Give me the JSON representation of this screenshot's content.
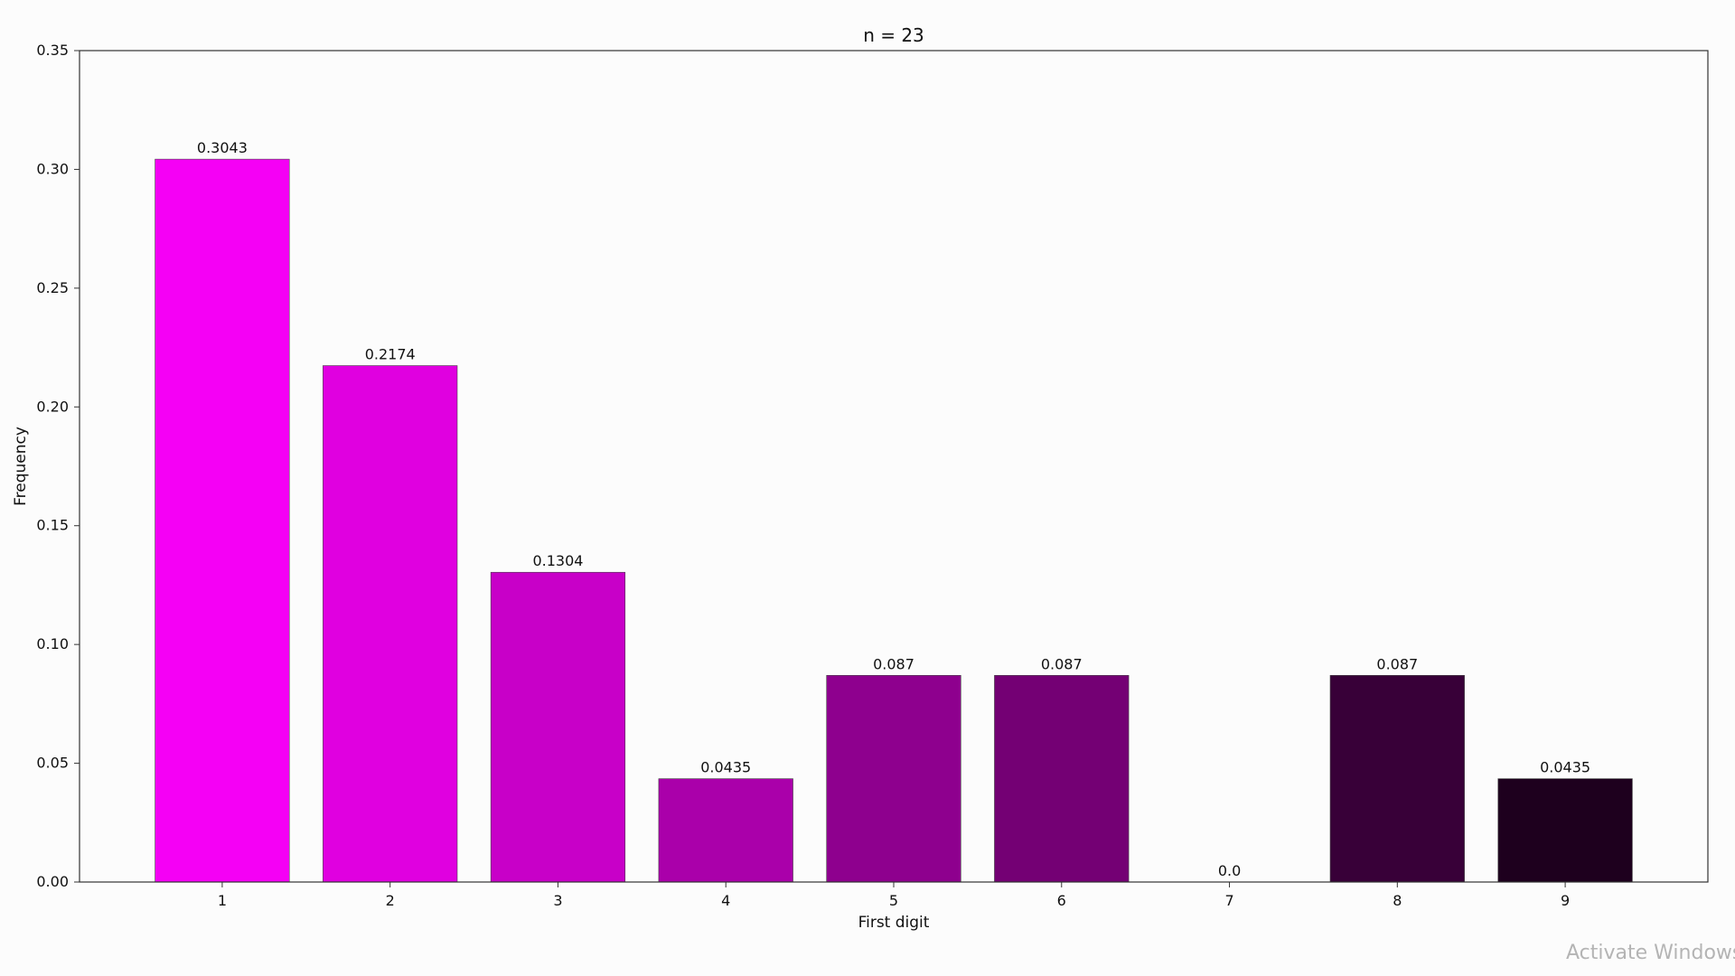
{
  "chart_data": {
    "type": "bar",
    "title": "n = 23",
    "xlabel": "First digit",
    "ylabel": "Frequency",
    "categories": [
      "1",
      "2",
      "3",
      "4",
      "5",
      "6",
      "7",
      "8",
      "9"
    ],
    "values": [
      0.3043,
      0.2174,
      0.1304,
      0.0435,
      0.087,
      0.087,
      0.0,
      0.087,
      0.0435
    ],
    "value_labels": [
      "0.3043",
      "0.2174",
      "0.1304",
      "0.0435",
      "0.087",
      "0.087",
      "0.0",
      "0.087",
      "0.0435"
    ],
    "colors": [
      "#f500f5",
      "#e000e0",
      "#c800c8",
      "#aa00aa",
      "#8e008e",
      "#740074",
      "#5a005a",
      "#380038",
      "#1e001e"
    ],
    "ylim": [
      0,
      0.35
    ],
    "yticks": [
      0.0,
      0.05,
      0.1,
      0.15,
      0.2,
      0.25,
      0.3,
      0.35
    ],
    "ytick_labels": [
      "0.00",
      "0.05",
      "0.10",
      "0.15",
      "0.20",
      "0.25",
      "0.30",
      "0.35"
    ],
    "grid": false,
    "legend": "none"
  },
  "watermark": {
    "text": "Activate Windows"
  }
}
